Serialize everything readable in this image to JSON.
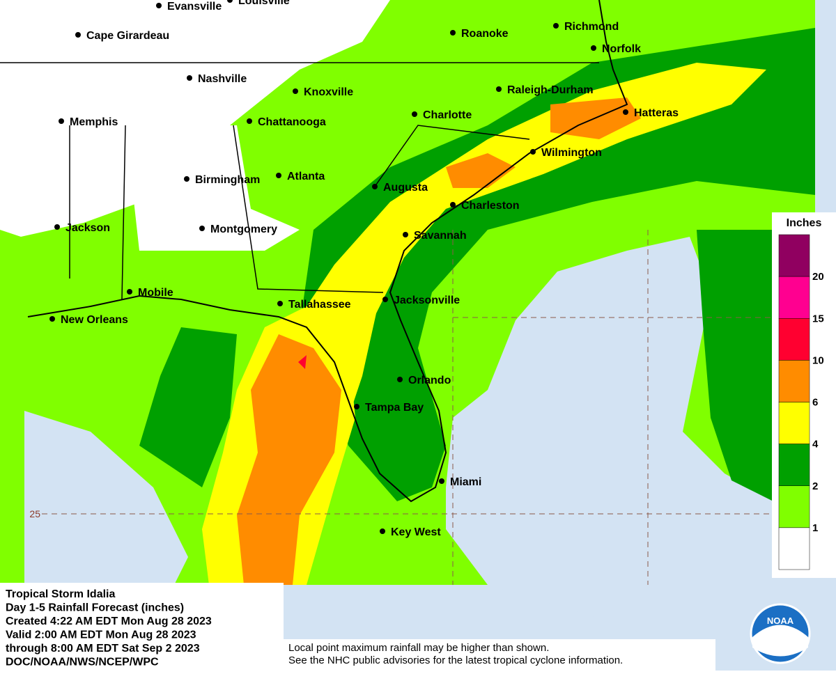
{
  "map": {
    "cities": [
      "Evansville",
      "Louisville",
      "Cape Girardeau",
      "Roanoke",
      "Richmond",
      "Norfolk",
      "Nashville",
      "Knoxville",
      "Raleigh-Durham",
      "Memphis",
      "Chattanooga",
      "Charlotte",
      "Hatteras",
      "Wilmington",
      "Birmingham",
      "Atlanta",
      "Augusta",
      "Charleston",
      "Jackson",
      "Montgomery",
      "Savannah",
      "Mobile",
      "Tallahassee",
      "Jacksonville",
      "New Orleans",
      "Orlando",
      "Tampa Bay",
      "Miami",
      "Key West"
    ],
    "latitude_label": "25"
  },
  "legend": {
    "title": "Inches",
    "ticks": [
      20,
      15,
      10,
      6,
      4,
      2,
      1
    ],
    "colors": [
      "#900060",
      "#ff0090",
      "#ff0030",
      "#ff8c00",
      "#ffff00",
      "#00a000",
      "#80ff00",
      "#ffffff"
    ]
  },
  "info": {
    "lines": [
      "Tropical Storm Idalia",
      "Day 1-5 Rainfall Forecast (inches)",
      "Created 4:22 AM EDT Mon Aug 28 2023",
      "Valid 2:00 AM EDT Mon Aug 28 2023",
      "through 8:00 AM EDT Sat Sep 2 2023",
      "DOC/NOAA/NWS/NCEP/WPC"
    ]
  },
  "disclaimer": [
    "Local point maximum rainfall may be higher than shown.",
    "See the NHC public advisories for the latest tropical cyclone information."
  ],
  "logo": "NOAA"
}
